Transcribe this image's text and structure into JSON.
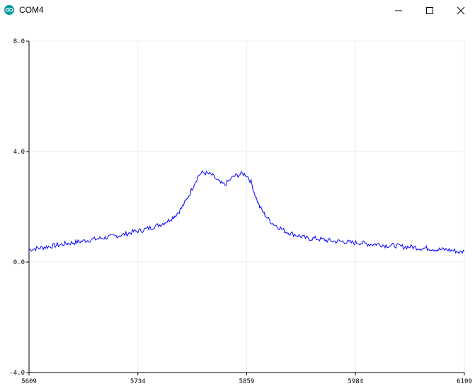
{
  "window": {
    "title": "COM4",
    "app_icon": "arduino-infinity-icon",
    "controls": [
      "minimize-icon",
      "maximize-icon",
      "close-icon"
    ]
  },
  "chart_data": {
    "type": "line",
    "title": "",
    "xlabel": "",
    "ylabel": "",
    "xlim": [
      5609,
      6109
    ],
    "ylim": [
      -4.0,
      8.0
    ],
    "x_ticks": [
      "5609",
      "5734",
      "5859",
      "5984",
      "6109"
    ],
    "y_ticks": [
      "8.0",
      "4.0",
      "0.0",
      "-4.0"
    ],
    "grid": true,
    "series": [
      {
        "color": "#0000ff",
        "x": [
          5609,
          5619,
          5629,
          5639,
          5649,
          5659,
          5669,
          5679,
          5689,
          5699,
          5709,
          5719,
          5729,
          5739,
          5749,
          5759,
          5769,
          5779,
          5784,
          5789,
          5794,
          5799,
          5804,
          5809,
          5814,
          5819,
          5824,
          5829,
          5834,
          5839,
          5844,
          5849,
          5854,
          5859,
          5864,
          5869,
          5874,
          5879,
          5884,
          5889,
          5894,
          5899,
          5904,
          5909,
          5914,
          5919,
          5924,
          5929,
          5939,
          5949,
          5959,
          5969,
          5979,
          5989,
          5999,
          6009,
          6019,
          6029,
          6039,
          6049,
          6059,
          6069,
          6079,
          6089,
          6099,
          6104,
          6109
        ],
        "y": [
          0.45,
          0.5,
          0.55,
          0.6,
          0.65,
          0.7,
          0.75,
          0.8,
          0.85,
          0.9,
          0.95,
          1.0,
          1.1,
          1.15,
          1.25,
          1.35,
          1.5,
          1.75,
          1.95,
          2.2,
          2.5,
          2.85,
          3.15,
          3.25,
          3.2,
          3.15,
          3.0,
          2.85,
          2.8,
          2.95,
          3.1,
          3.15,
          3.2,
          3.15,
          2.9,
          2.4,
          2.0,
          1.75,
          1.55,
          1.4,
          1.3,
          1.2,
          1.1,
          1.05,
          1.0,
          0.95,
          0.9,
          0.85,
          0.85,
          0.8,
          0.75,
          0.75,
          0.7,
          0.7,
          0.65,
          0.65,
          0.6,
          0.6,
          0.55,
          0.55,
          0.5,
          0.5,
          0.45,
          0.45,
          0.4,
          0.35,
          0.4
        ]
      }
    ]
  }
}
